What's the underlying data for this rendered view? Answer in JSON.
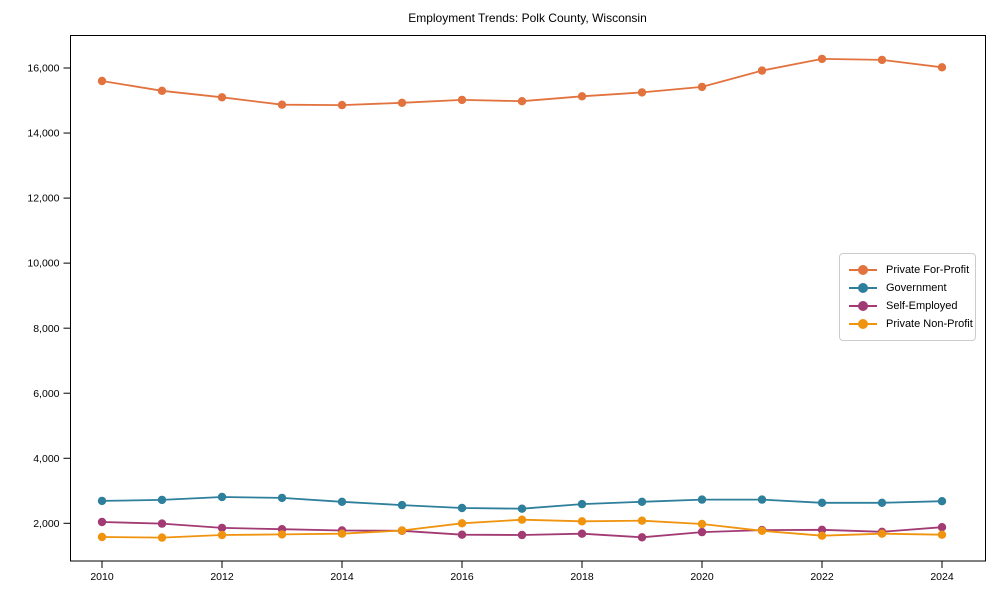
{
  "chart_data": {
    "type": "line",
    "title": "Employment Trends: Polk County, Wisconsin",
    "xlabel": "",
    "ylabel": "",
    "x": [
      2010,
      2011,
      2012,
      2013,
      2014,
      2015,
      2016,
      2017,
      2018,
      2019,
      2020,
      2021,
      2022,
      2023,
      2024
    ],
    "x_ticks": [
      2010,
      2012,
      2014,
      2016,
      2018,
      2020,
      2022,
      2024
    ],
    "x_tick_labels": [
      "2010",
      "2012",
      "2014",
      "2016",
      "2018",
      "2020",
      "2022",
      "2024"
    ],
    "y_ticks": [
      2000,
      4000,
      6000,
      8000,
      10000,
      12000,
      14000,
      16000
    ],
    "y_tick_labels": [
      "2,000",
      "4,000",
      "6,000",
      "8,000",
      "10,000",
      "12,000",
      "14,000",
      "16,000"
    ],
    "ylim": [
      850,
      17000
    ],
    "grid": false,
    "legend_position": "center right",
    "marker": "circle",
    "series": [
      {
        "name": "Private For-Profit",
        "color": "#e2733f",
        "values": [
          15600,
          15300,
          15100,
          14870,
          14860,
          14930,
          15020,
          14980,
          15130,
          15250,
          15420,
          15920,
          16280,
          16250,
          16020
        ]
      },
      {
        "name": "Government",
        "color": "#2e7f9c",
        "values": [
          2690,
          2720,
          2810,
          2780,
          2660,
          2560,
          2470,
          2450,
          2590,
          2660,
          2730,
          2730,
          2630,
          2630,
          2680
        ]
      },
      {
        "name": "Self-Employed",
        "color": "#a23a73",
        "values": [
          2040,
          1990,
          1860,
          1820,
          1780,
          1770,
          1650,
          1640,
          1680,
          1570,
          1730,
          1790,
          1800,
          1740,
          1880
        ]
      },
      {
        "name": "Private Non-Profit",
        "color": "#f0930f",
        "values": [
          1580,
          1560,
          1640,
          1660,
          1680,
          1780,
          2000,
          2110,
          2060,
          2080,
          1980,
          1770,
          1620,
          1680,
          1650
        ]
      }
    ]
  }
}
